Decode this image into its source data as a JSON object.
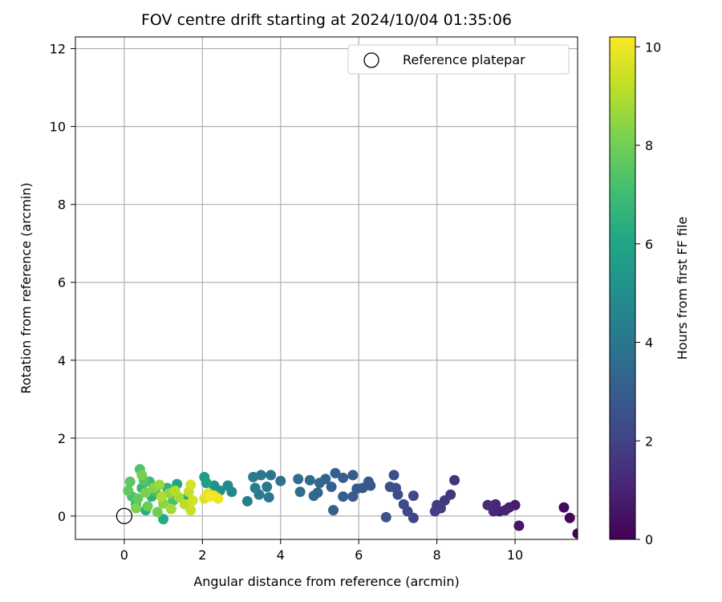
{
  "chart_data": {
    "type": "scatter",
    "title": "FOV centre drift starting at 2024/10/04 01:35:06",
    "xlabel": "Angular distance from reference (arcmin)",
    "ylabel": "Rotation from reference (arcmin)",
    "xlim": [
      -1.25,
      11.6
    ],
    "ylim": [
      -0.6,
      12.3
    ],
    "xticks": [
      0,
      2,
      4,
      6,
      8,
      10
    ],
    "yticks": [
      0,
      2,
      4,
      6,
      8,
      10,
      12
    ],
    "grid": true,
    "legend": {
      "position": "top-right",
      "entries": [
        "Reference platepar"
      ]
    },
    "reference_point": {
      "name": "Reference platepar",
      "x": 0,
      "y": 0,
      "marker": "open-circle"
    },
    "colorbar": {
      "label": "Hours from first FF file",
      "range": [
        0,
        10.2
      ],
      "ticks": [
        0,
        2,
        4,
        6,
        8,
        10
      ],
      "colormap": "viridis"
    },
    "series": [
      {
        "marker": "filled-circle",
        "color_encoding": "hours",
        "points": [
          {
            "x": 11.6,
            "y": -0.45,
            "h": 0.05
          },
          {
            "x": 11.4,
            "y": -0.05,
            "h": 0.15
          },
          {
            "x": 11.25,
            "y": 0.22,
            "h": 0.3
          },
          {
            "x": 10.1,
            "y": -0.25,
            "h": 0.6
          },
          {
            "x": 10.0,
            "y": 0.28,
            "h": 0.75
          },
          {
            "x": 9.85,
            "y": 0.22,
            "h": 0.85
          },
          {
            "x": 9.75,
            "y": 0.15,
            "h": 0.95
          },
          {
            "x": 9.6,
            "y": 0.12,
            "h": 1.0
          },
          {
            "x": 9.5,
            "y": 0.3,
            "h": 1.1
          },
          {
            "x": 9.45,
            "y": 0.12,
            "h": 1.15
          },
          {
            "x": 9.3,
            "y": 0.28,
            "h": 1.25
          },
          {
            "x": 8.45,
            "y": 0.92,
            "h": 1.5
          },
          {
            "x": 8.35,
            "y": 0.55,
            "h": 1.6
          },
          {
            "x": 8.2,
            "y": 0.4,
            "h": 1.7
          },
          {
            "x": 8.1,
            "y": 0.2,
            "h": 1.8
          },
          {
            "x": 8.0,
            "y": 0.28,
            "h": 1.85
          },
          {
            "x": 7.95,
            "y": 0.12,
            "h": 1.9
          },
          {
            "x": 7.4,
            "y": -0.05,
            "h": 2.1
          },
          {
            "x": 7.4,
            "y": 0.52,
            "h": 2.15
          },
          {
            "x": 7.25,
            "y": 0.12,
            "h": 2.2
          },
          {
            "x": 7.15,
            "y": 0.3,
            "h": 2.25
          },
          {
            "x": 7.0,
            "y": 0.55,
            "h": 2.35
          },
          {
            "x": 6.95,
            "y": 0.72,
            "h": 2.4
          },
          {
            "x": 6.9,
            "y": 1.05,
            "h": 2.45
          },
          {
            "x": 6.8,
            "y": 0.75,
            "h": 2.5
          },
          {
            "x": 6.7,
            "y": -0.03,
            "h": 2.55
          },
          {
            "x": 6.3,
            "y": 0.78,
            "h": 2.7
          },
          {
            "x": 6.25,
            "y": 0.88,
            "h": 2.75
          },
          {
            "x": 6.1,
            "y": 0.72,
            "h": 2.8
          },
          {
            "x": 5.95,
            "y": 0.7,
            "h": 2.85
          },
          {
            "x": 5.85,
            "y": 0.5,
            "h": 2.9
          },
          {
            "x": 5.85,
            "y": 1.05,
            "h": 2.95
          },
          {
            "x": 5.6,
            "y": 0.5,
            "h": 3.0
          },
          {
            "x": 5.6,
            "y": 0.98,
            "h": 3.05
          },
          {
            "x": 5.4,
            "y": 1.1,
            "h": 3.1
          },
          {
            "x": 5.35,
            "y": 0.15,
            "h": 3.15
          },
          {
            "x": 5.3,
            "y": 0.75,
            "h": 3.2
          },
          {
            "x": 5.15,
            "y": 0.95,
            "h": 3.3
          },
          {
            "x": 5.0,
            "y": 0.85,
            "h": 3.35
          },
          {
            "x": 4.95,
            "y": 0.6,
            "h": 3.4
          },
          {
            "x": 4.85,
            "y": 0.52,
            "h": 3.45
          },
          {
            "x": 4.75,
            "y": 0.92,
            "h": 3.5
          },
          {
            "x": 4.5,
            "y": 0.62,
            "h": 3.6
          },
          {
            "x": 4.45,
            "y": 0.95,
            "h": 3.65
          },
          {
            "x": 4.0,
            "y": 0.9,
            "h": 3.8
          },
          {
            "x": 3.75,
            "y": 1.05,
            "h": 3.9
          },
          {
            "x": 3.7,
            "y": 0.48,
            "h": 3.95
          },
          {
            "x": 3.65,
            "y": 0.75,
            "h": 4.0
          },
          {
            "x": 3.5,
            "y": 1.05,
            "h": 4.1
          },
          {
            "x": 3.45,
            "y": 0.55,
            "h": 4.15
          },
          {
            "x": 3.35,
            "y": 0.72,
            "h": 4.2
          },
          {
            "x": 3.3,
            "y": 1.0,
            "h": 4.25
          },
          {
            "x": 3.15,
            "y": 0.38,
            "h": 4.35
          },
          {
            "x": 2.75,
            "y": 0.62,
            "h": 4.7
          },
          {
            "x": 2.65,
            "y": 0.78,
            "h": 4.8
          },
          {
            "x": 2.45,
            "y": 0.65,
            "h": 5.0
          },
          {
            "x": 2.3,
            "y": 0.78,
            "h": 5.2
          },
          {
            "x": 2.15,
            "y": 0.55,
            "h": 5.4
          },
          {
            "x": 2.05,
            "y": 1.0,
            "h": 5.6
          },
          {
            "x": 2.1,
            "y": 0.85,
            "h": 5.7
          },
          {
            "x": 1.6,
            "y": 0.45,
            "h": 5.9
          },
          {
            "x": 1.35,
            "y": 0.82,
            "h": 6.0
          },
          {
            "x": 1.0,
            "y": -0.08,
            "h": 6.2
          },
          {
            "x": 0.55,
            "y": 0.15,
            "h": 6.35
          },
          {
            "x": 0.7,
            "y": 0.5,
            "h": 6.5
          },
          {
            "x": 1.1,
            "y": 0.72,
            "h": 6.6
          },
          {
            "x": 0.3,
            "y": 0.3,
            "h": 6.75
          },
          {
            "x": 0.45,
            "y": 0.72,
            "h": 6.85
          },
          {
            "x": 0.65,
            "y": 0.88,
            "h": 6.95
          },
          {
            "x": 0.8,
            "y": 0.62,
            "h": 7.05
          },
          {
            "x": 1.25,
            "y": 0.4,
            "h": 7.15
          },
          {
            "x": 0.2,
            "y": 0.5,
            "h": 7.25
          },
          {
            "x": 0.4,
            "y": 1.2,
            "h": 7.35
          },
          {
            "x": 0.5,
            "y": 0.92,
            "h": 7.45
          },
          {
            "x": 0.15,
            "y": 0.88,
            "h": 7.55
          },
          {
            "x": 0.1,
            "y": 0.65,
            "h": 7.65
          },
          {
            "x": 0.35,
            "y": 0.45,
            "h": 7.75
          },
          {
            "x": 0.6,
            "y": 0.25,
            "h": 7.85
          },
          {
            "x": 0.85,
            "y": 0.1,
            "h": 7.95
          },
          {
            "x": 0.45,
            "y": 1.05,
            "h": 8.05
          },
          {
            "x": 0.55,
            "y": 0.6,
            "h": 8.15
          },
          {
            "x": 0.3,
            "y": 0.2,
            "h": 8.25
          },
          {
            "x": 0.75,
            "y": 0.72,
            "h": 8.35
          },
          {
            "x": 1.0,
            "y": 0.32,
            "h": 8.45
          },
          {
            "x": 1.15,
            "y": 0.58,
            "h": 8.55
          },
          {
            "x": 0.9,
            "y": 0.8,
            "h": 8.65
          },
          {
            "x": 1.2,
            "y": 0.18,
            "h": 8.75
          },
          {
            "x": 1.4,
            "y": 0.48,
            "h": 8.85
          },
          {
            "x": 0.95,
            "y": 0.5,
            "h": 8.95
          },
          {
            "x": 1.3,
            "y": 0.65,
            "h": 9.05
          },
          {
            "x": 1.55,
            "y": 0.3,
            "h": 9.15
          },
          {
            "x": 1.65,
            "y": 0.62,
            "h": 9.25
          },
          {
            "x": 1.7,
            "y": 0.15,
            "h": 9.35
          },
          {
            "x": 1.75,
            "y": 0.4,
            "h": 9.5
          },
          {
            "x": 1.7,
            "y": 0.8,
            "h": 9.6
          },
          {
            "x": 2.05,
            "y": 0.45,
            "h": 9.7
          },
          {
            "x": 2.15,
            "y": 0.58,
            "h": 9.8
          },
          {
            "x": 2.3,
            "y": 0.52,
            "h": 9.9
          },
          {
            "x": 2.4,
            "y": 0.45,
            "h": 10.0
          },
          {
            "x": 2.2,
            "y": 0.5,
            "h": 10.1
          }
        ]
      }
    ]
  }
}
